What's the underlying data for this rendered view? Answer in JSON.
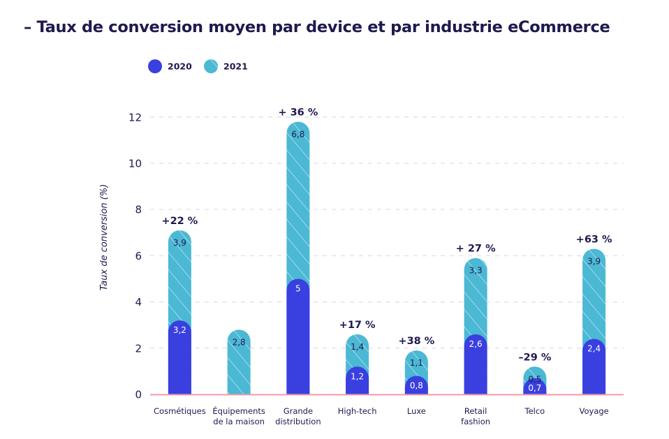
{
  "title": "– Taux de conversion moyen par device et par industrie eCommerce",
  "colors": {
    "s2020": "#3a3fe0",
    "s2021": "#4bb8d4",
    "hatch": "#ffffff",
    "grid": "#e3e3ea",
    "axis": "#f29aaa",
    "text": "#1e1a4f"
  },
  "chart_data": {
    "type": "bar",
    "title": "– Taux de conversion moyen par device et par industrie eCommerce",
    "ylabel": "Taux de conversion (%)",
    "xlabel": "",
    "ylim": [
      0,
      13
    ],
    "yticks": [
      0,
      2,
      4,
      6,
      8,
      10,
      12
    ],
    "grid": true,
    "legend_position": "top-left",
    "categories": [
      [
        "Cosmétiques"
      ],
      [
        "Équipements",
        "de la maison"
      ],
      [
        "Grande",
        "distribution"
      ],
      [
        "High-tech"
      ],
      [
        "Luxe"
      ],
      [
        "Retail",
        "fashion"
      ],
      [
        "Telco"
      ],
      [
        "Voyage"
      ]
    ],
    "series": [
      {
        "name": "2020",
        "values": [
          3.2,
          null,
          5,
          1.2,
          0.8,
          2.6,
          0.7,
          2.4
        ],
        "labels": [
          "3,2",
          "",
          "5",
          "1,2",
          "0,8",
          "2,6",
          "0,7",
          "2,4"
        ]
      },
      {
        "name": "2021",
        "values": [
          3.9,
          2.8,
          6.8,
          1.4,
          1.1,
          3.3,
          0.5,
          3.9
        ],
        "labels": [
          "3,9",
          "2,8",
          "6,8",
          "1,4",
          "1,1",
          "3,3",
          "0,5",
          "3,9"
        ]
      }
    ],
    "changes": [
      "+22 %",
      "",
      "+ 36 %",
      "+17 %",
      "+38 %",
      "+ 27 %",
      "–29 %",
      "+63 %"
    ]
  }
}
